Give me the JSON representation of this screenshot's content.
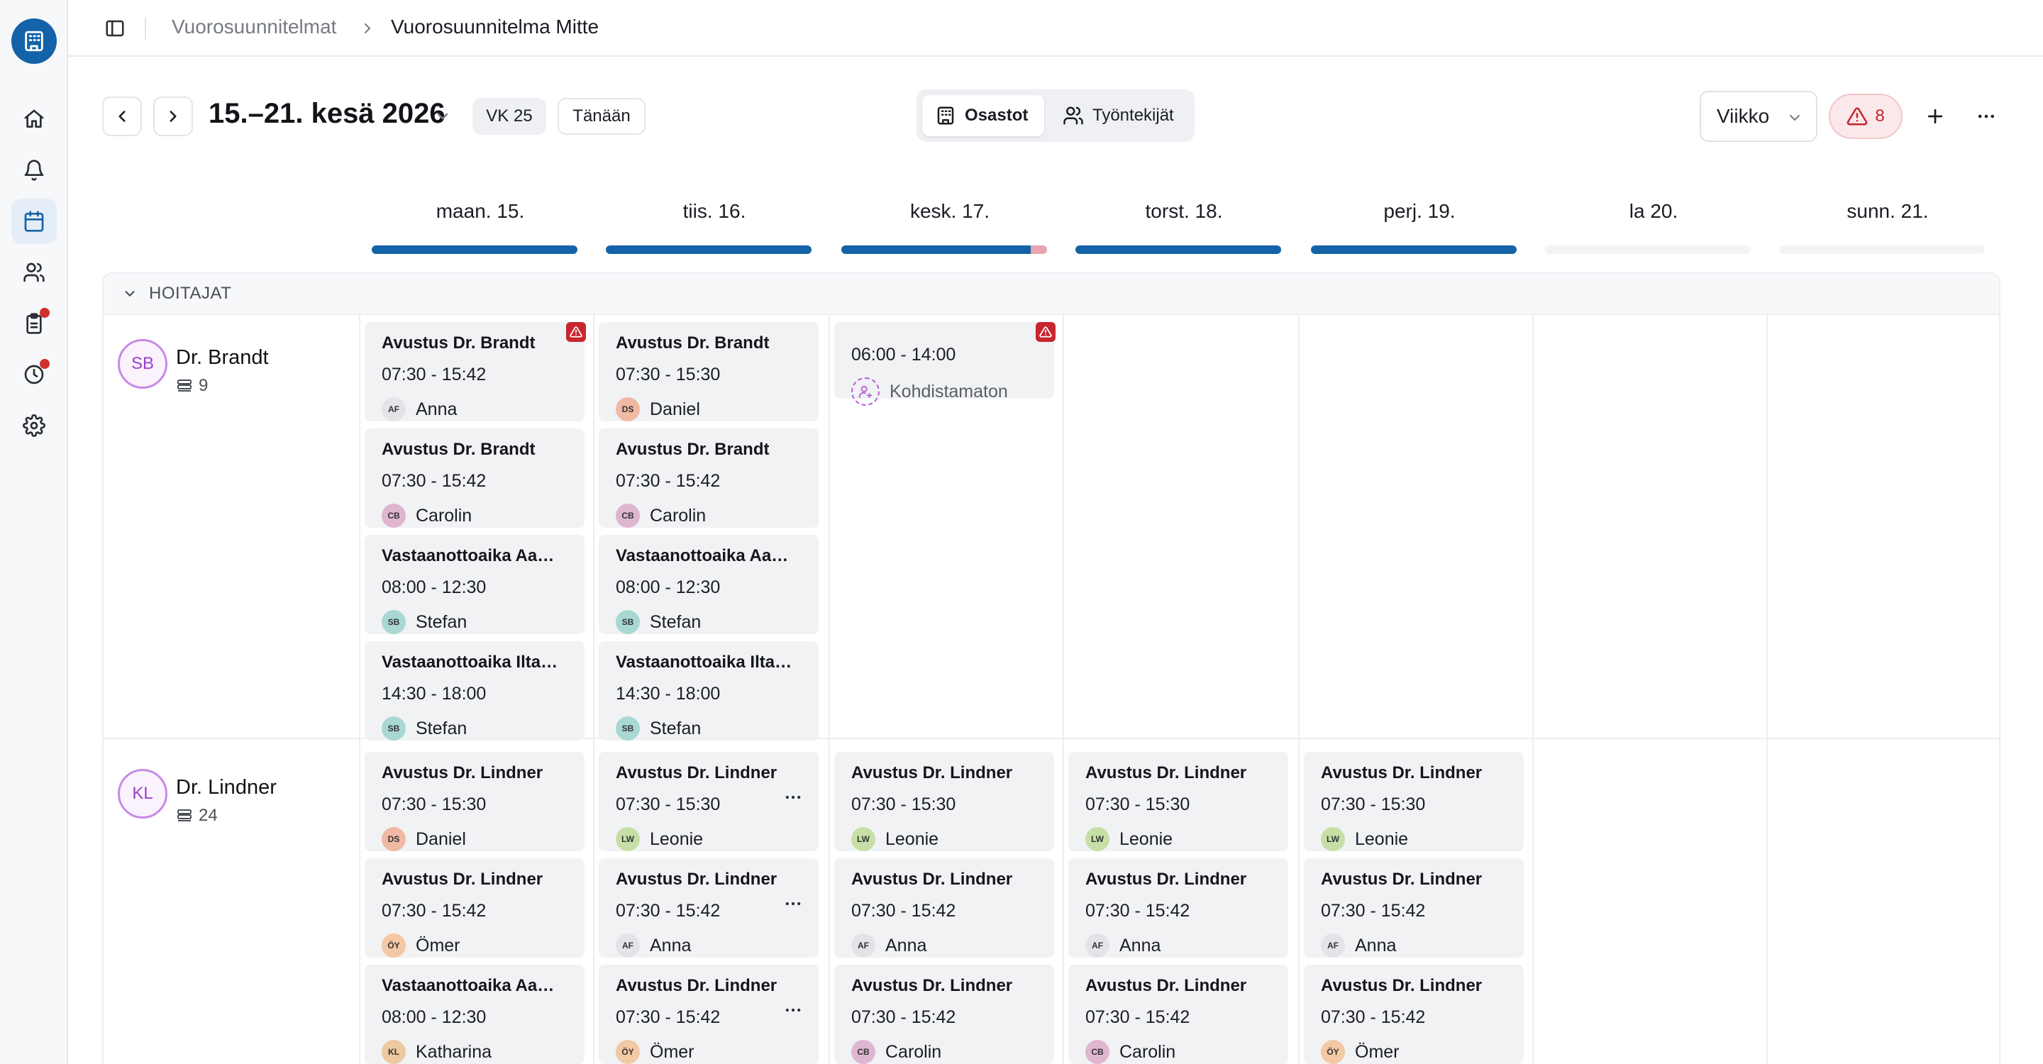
{
  "breadcrumb": {
    "root": "Vuorosuunnitelmat",
    "current": "Vuorosuunnitelma Mitte"
  },
  "toolbar": {
    "date_range": "15.–21. kesä 2026",
    "week_badge": "VK 25",
    "today_button": "Tänään",
    "view_toggle": {
      "departments": "Osastot",
      "employees": "Työntekijät",
      "active": "departments"
    },
    "view_select": "Viikko",
    "warnings_count": "8"
  },
  "days": [
    {
      "label": "maan. 15.",
      "coverage": 1.0,
      "over": 0.0
    },
    {
      "label": "tiis. 16.",
      "coverage": 1.0,
      "over": 0.0
    },
    {
      "label": "kesk. 17.",
      "coverage": 0.92,
      "over": 0.08
    },
    {
      "label": "torst. 18.",
      "coverage": 1.0,
      "over": 0.0
    },
    {
      "label": "perj. 19.",
      "coverage": 1.0,
      "over": 0.0
    },
    {
      "label": "la 20.",
      "coverage": 0.0,
      "over": 0.0
    },
    {
      "label": "sunn. 21.",
      "coverage": 0.0,
      "over": 0.0
    }
  ],
  "group": {
    "name": "HOITAJAT"
  },
  "people": [
    {
      "initials": "SB",
      "name": "Dr. Brandt",
      "count": "9"
    },
    {
      "initials": "KL",
      "name": "Dr. Lindner",
      "count": "24"
    }
  ],
  "shifts": {
    "brandt": [
      [
        {
          "title": "Avustus Dr. Brandt",
          "time": "07:30 - 15:42",
          "initials": "AF",
          "worker": "Anna",
          "color": "#e3e4e7",
          "warn": true
        },
        {
          "title": "Avustus Dr. Brandt",
          "time": "07:30 - 15:42",
          "initials": "CB",
          "worker": "Carolin",
          "color": "#dfb6cf"
        },
        {
          "title": "Vastaanottoaika Aamupäivä",
          "time": "08:00 - 12:30",
          "initials": "SB",
          "worker": "Stefan",
          "color": "#a9d8d2"
        },
        {
          "title": "Vastaanottoaika Iltapäivä",
          "time": "14:30 - 18:00",
          "initials": "SB",
          "worker": "Stefan",
          "color": "#a9d8d2"
        }
      ],
      [
        {
          "title": "Avustus Dr. Brandt",
          "time": "07:30 - 15:30",
          "initials": "DS",
          "worker": "Daniel",
          "color": "#f0b9a3"
        },
        {
          "title": "Avustus Dr. Brandt",
          "time": "07:30 - 15:42",
          "initials": "CB",
          "worker": "Carolin",
          "color": "#dfb6cf"
        },
        {
          "title": "Vastaanottoaika Aamupäivä",
          "time": "08:00 - 12:30",
          "initials": "SB",
          "worker": "Stefan",
          "color": "#a9d8d2"
        },
        {
          "title": "Vastaanottoaika Iltapäivä",
          "time": "14:30 - 18:00",
          "initials": "SB",
          "worker": "Stefan",
          "color": "#a9d8d2"
        }
      ],
      [
        {
          "title": "",
          "time": "06:00 - 14:00",
          "initials": "",
          "worker": "Kohdistamaton",
          "color": "",
          "warn": true,
          "unassigned": true
        }
      ],
      [],
      [],
      [],
      []
    ],
    "lindner": [
      [
        {
          "title": "Avustus Dr. Lindner",
          "time": "07:30 - 15:30",
          "initials": "DS",
          "worker": "Daniel",
          "color": "#f0b9a3"
        },
        {
          "title": "Avustus Dr. Lindner",
          "time": "07:30 - 15:42",
          "initials": "ÖY",
          "worker": "Ömer",
          "color": "#f3c8a4"
        },
        {
          "title": "Vastaanottoaika Aamupäivä",
          "time": "08:00 - 12:30",
          "initials": "KL",
          "worker": "Katharina",
          "color": "#ecc9a0"
        }
      ],
      [
        {
          "title": "Avustus Dr. Lindner",
          "time": "07:30 - 15:30",
          "initials": "LW",
          "worker": "Leonie",
          "color": "#c7dfa6",
          "more": true
        },
        {
          "title": "Avustus Dr. Lindner",
          "time": "07:30 - 15:42",
          "initials": "AF",
          "worker": "Anna",
          "color": "#e3e4e7",
          "more": true
        },
        {
          "title": "Avustus Dr. Lindner",
          "time": "07:30 - 15:42",
          "initials": "ÖY",
          "worker": "Ömer",
          "color": "#f3c8a4",
          "more": true
        }
      ],
      [
        {
          "title": "Avustus Dr. Lindner",
          "time": "07:30 - 15:30",
          "initials": "LW",
          "worker": "Leonie",
          "color": "#c7dfa6"
        },
        {
          "title": "Avustus Dr. Lindner",
          "time": "07:30 - 15:42",
          "initials": "AF",
          "worker": "Anna",
          "color": "#e3e4e7"
        },
        {
          "title": "Avustus Dr. Lindner",
          "time": "07:30 - 15:42",
          "initials": "CB",
          "worker": "Carolin",
          "color": "#dfb6cf"
        }
      ],
      [
        {
          "title": "Avustus Dr. Lindner",
          "time": "07:30 - 15:30",
          "initials": "LW",
          "worker": "Leonie",
          "color": "#c7dfa6"
        },
        {
          "title": "Avustus Dr. Lindner",
          "time": "07:30 - 15:42",
          "initials": "AF",
          "worker": "Anna",
          "color": "#e3e4e7"
        },
        {
          "title": "Avustus Dr. Lindner",
          "time": "07:30 - 15:42",
          "initials": "CB",
          "worker": "Carolin",
          "color": "#dfb6cf"
        }
      ],
      [
        {
          "title": "Avustus Dr. Lindner",
          "time": "07:30 - 15:30",
          "initials": "LW",
          "worker": "Leonie",
          "color": "#c7dfa6"
        },
        {
          "title": "Avustus Dr. Lindner",
          "time": "07:30 - 15:42",
          "initials": "AF",
          "worker": "Anna",
          "color": "#e3e4e7"
        },
        {
          "title": "Avustus Dr. Lindner",
          "time": "07:30 - 15:42",
          "initials": "ÖY",
          "worker": "Ömer",
          "color": "#f3c8a4"
        }
      ],
      [],
      []
    ]
  },
  "sidebar": {
    "items": [
      {
        "icon": "home-icon"
      },
      {
        "icon": "bell-icon"
      },
      {
        "icon": "calendar-icon",
        "active": true
      },
      {
        "icon": "users-icon"
      },
      {
        "icon": "clipboard-icon",
        "badge": true
      },
      {
        "icon": "clock-icon",
        "badge": true
      },
      {
        "icon": "gear-icon"
      }
    ]
  },
  "colors": {
    "accent": "#1463a8",
    "warning": "#c8262d",
    "unassigned": "#b55fd6"
  }
}
